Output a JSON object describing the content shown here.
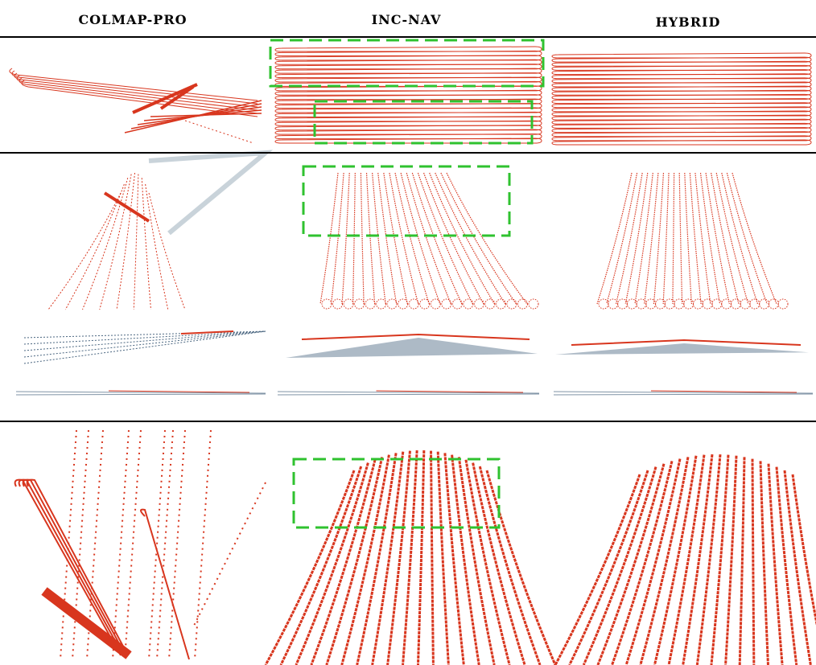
{
  "header": {
    "columns": [
      "COLMAP-PRO",
      "INC-NAV",
      "HYBRID"
    ]
  }
}
